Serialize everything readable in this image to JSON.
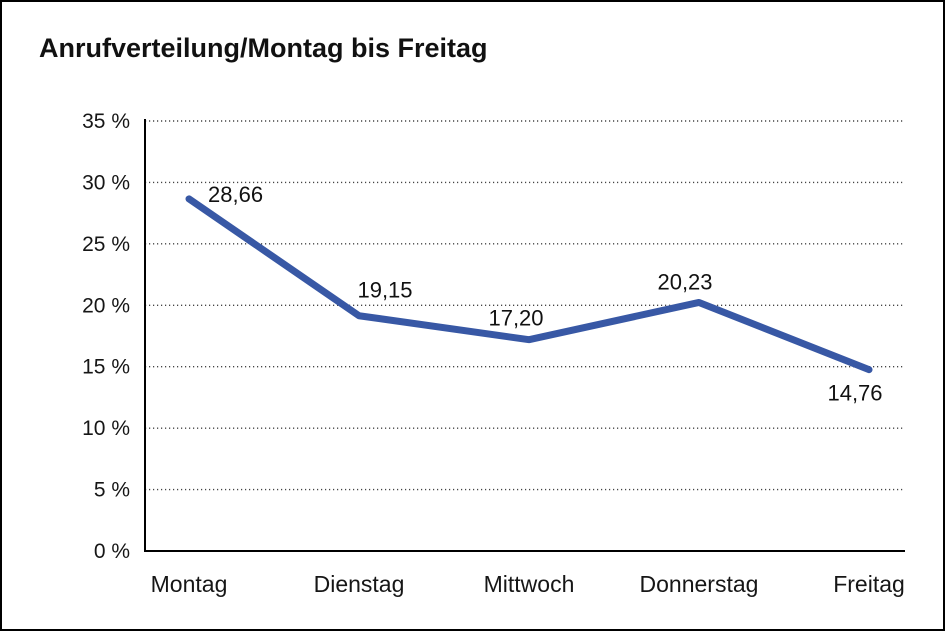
{
  "chart_data": {
    "type": "line",
    "title": "Anrufverteilung/Montag bis Freitag",
    "categories": [
      "Montag",
      "Dienstag",
      "Mittwoch",
      "Donnerstag",
      "Freitag"
    ],
    "values": [
      28.66,
      19.15,
      17.2,
      20.23,
      14.76
    ],
    "point_labels": [
      "28,66",
      "19,15",
      "17,20",
      "20,23",
      "14,76"
    ],
    "series_name": "Anrufverteilung",
    "xlabel": "",
    "ylabel": "",
    "ylim": [
      0,
      35
    ],
    "ytick_step": 5,
    "ytick_labels": [
      "0 %",
      "5 %",
      "10 %",
      "15 %",
      "20 %",
      "25 %",
      "30 %",
      "35 %"
    ],
    "grid": "horizontal-dotted",
    "legend": "none",
    "line_color": "#3858A5",
    "axis_color": "#000000",
    "gridline_color": "#444444",
    "text_color": "#161616",
    "background_color": "#ffffff",
    "frame_border_color": "#000000"
  }
}
